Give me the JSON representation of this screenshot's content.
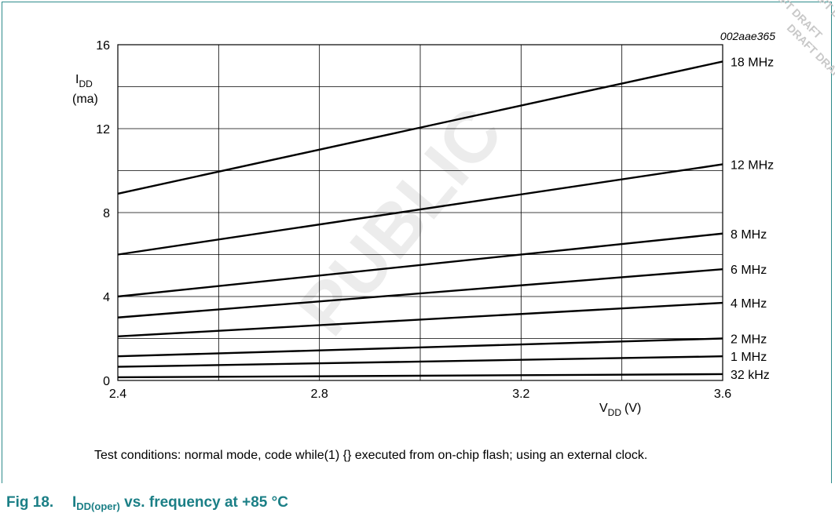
{
  "chart_data": {
    "type": "line",
    "figure_code": "002aae365",
    "ylabel_main": "I",
    "ylabel_sub": "DD",
    "ylabel_unit": "(ma)",
    "xlabel_main": "V",
    "xlabel_sub": "DD",
    "xlabel_unit": "(V)",
    "xlim": [
      2.4,
      3.6
    ],
    "ylim": [
      0,
      16
    ],
    "x_ticks": [
      "2.4",
      "2.8",
      "3.2",
      "3.6"
    ],
    "x_tick_values": [
      2.4,
      2.8,
      3.2,
      3.6
    ],
    "y_ticks": [
      "0",
      "4",
      "8",
      "12",
      "16"
    ],
    "y_tick_values": [
      0,
      4,
      8,
      12,
      16
    ],
    "grid": true,
    "series": [
      {
        "name": "18 MHz",
        "x": [
          2.4,
          3.6
        ],
        "y": [
          8.9,
          15.2
        ]
      },
      {
        "name": "12 MHz",
        "x": [
          2.4,
          3.6
        ],
        "y": [
          6.0,
          10.3
        ]
      },
      {
        "name": "8 MHz",
        "x": [
          2.4,
          3.6
        ],
        "y": [
          4.0,
          7.0
        ]
      },
      {
        "name": "6 MHz",
        "x": [
          2.4,
          3.6
        ],
        "y": [
          3.0,
          5.3
        ]
      },
      {
        "name": "4 MHz",
        "x": [
          2.4,
          3.6
        ],
        "y": [
          2.1,
          3.7
        ]
      },
      {
        "name": "2 MHz",
        "x": [
          2.4,
          3.6
        ],
        "y": [
          1.15,
          2.0
        ]
      },
      {
        "name": "1 MHz",
        "x": [
          2.4,
          3.6
        ],
        "y": [
          0.65,
          1.15
        ]
      },
      {
        "name": "32 kHz",
        "x": [
          2.4,
          3.6
        ],
        "y": [
          0.15,
          0.3
        ]
      }
    ]
  },
  "caption": {
    "note": "Test conditions: normal mode, code while(1) {} executed from on-chip flash; using an external clock.",
    "fig_label": "Fig 18.",
    "title_main": "I",
    "title_sub": "DD(oper)",
    "title_rest": " vs. frequency at +85 °C"
  },
  "watermark": {
    "main": "PUBLIC",
    "corner": "DRAFT DRAFT"
  },
  "colors": {
    "frame": "#2e8b8b",
    "title": "#1b7f86",
    "line": "#000000"
  }
}
